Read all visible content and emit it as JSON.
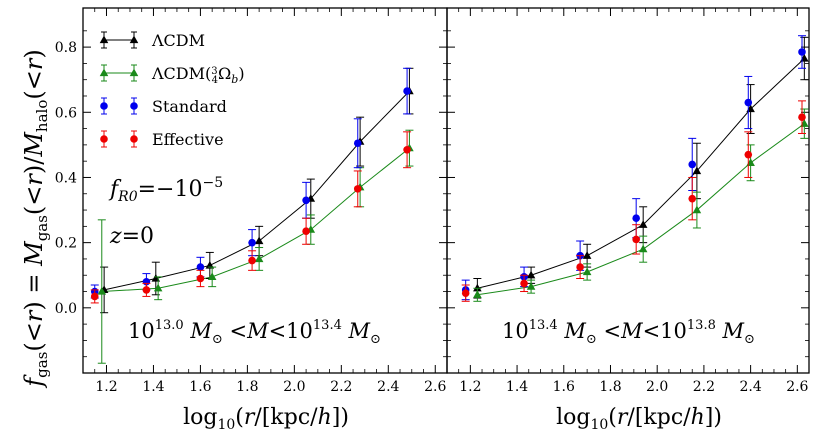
{
  "chart_data": [
    {
      "type": "scatter",
      "panel": "left",
      "xlabel": "log10(r/[kpc/h])",
      "ylabel": "f_gas(<r) = M_gas(<r)/M_halo(<r)",
      "xlim": [
        1.1,
        2.65
      ],
      "ylim": [
        -0.2,
        0.92
      ],
      "xticks": [
        "1.2",
        "1.4",
        "1.6",
        "1.8",
        "2.0",
        "2.2",
        "2.4",
        "2.6"
      ],
      "yticks": [
        "0.0",
        "0.2",
        "0.4",
        "0.6",
        "0.8"
      ],
      "annotations": [
        "f_R0 = −10^−5",
        "z = 0",
        "10^13.0 M☉ < M < 10^13.4 M☉"
      ],
      "grid": false,
      "series": [
        {
          "name": "ΛCDM",
          "marker": "triangle",
          "line": true,
          "x": [
            1.19,
            1.41,
            1.64,
            1.85,
            2.07,
            2.28,
            2.49
          ],
          "y": [
            0.055,
            0.09,
            0.13,
            0.205,
            0.335,
            0.51,
            0.665
          ],
          "err": [
            0.07,
            0.05,
            0.04,
            0.045,
            0.06,
            0.075,
            0.07
          ]
        },
        {
          "name": "ΛCDM(3/4 Ω_b)",
          "marker": "triangle",
          "line": true,
          "x": [
            1.18,
            1.42,
            1.65,
            1.85,
            2.07,
            2.28,
            2.49
          ],
          "y": [
            0.05,
            0.06,
            0.095,
            0.15,
            0.24,
            0.37,
            0.49
          ],
          "err": [
            0.22,
            0.035,
            0.03,
            0.035,
            0.045,
            0.06,
            0.055
          ]
        },
        {
          "name": "Standard",
          "marker": "circle",
          "line": false,
          "x": [
            1.15,
            1.37,
            1.6,
            1.82,
            2.05,
            2.27,
            2.48
          ],
          "y": [
            0.05,
            0.08,
            0.125,
            0.2,
            0.33,
            0.505,
            0.665
          ],
          "err": [
            0.02,
            0.025,
            0.03,
            0.04,
            0.055,
            0.075,
            0.07
          ]
        },
        {
          "name": "Effective",
          "marker": "circle",
          "line": false,
          "x": [
            1.15,
            1.37,
            1.6,
            1.82,
            2.05,
            2.27,
            2.48
          ],
          "y": [
            0.035,
            0.055,
            0.09,
            0.145,
            0.235,
            0.365,
            0.485
          ],
          "err": [
            0.02,
            0.02,
            0.025,
            0.03,
            0.04,
            0.055,
            0.055
          ]
        }
      ]
    },
    {
      "type": "scatter",
      "panel": "right",
      "xlabel": "log10(r/[kpc/h])",
      "ylabel": "",
      "xlim": [
        1.1,
        2.65
      ],
      "ylim": [
        -0.2,
        0.92
      ],
      "xticks": [
        "1.2",
        "1.4",
        "1.6",
        "1.8",
        "2.0",
        "2.2",
        "2.4",
        "2.6"
      ],
      "yticks": [],
      "annotations": [
        "10^13.4 M☉ < M < 10^13.8 M☉"
      ],
      "grid": false,
      "series": [
        {
          "name": "ΛCDM",
          "marker": "triangle",
          "line": true,
          "x": [
            1.23,
            1.46,
            1.7,
            1.94,
            2.17,
            2.4,
            2.63
          ],
          "y": [
            0.06,
            0.1,
            0.16,
            0.255,
            0.42,
            0.61,
            0.765
          ],
          "err": [
            0.03,
            0.025,
            0.035,
            0.055,
            0.085,
            0.075,
            0.065
          ]
        },
        {
          "name": "ΛCDM(3/4 Ω_b)",
          "marker": "triangle",
          "line": true,
          "x": [
            1.23,
            1.46,
            1.7,
            1.94,
            2.17,
            2.4,
            2.63
          ],
          "y": [
            0.04,
            0.065,
            0.11,
            0.18,
            0.3,
            0.445,
            0.565
          ],
          "err": [
            0.02,
            0.02,
            0.025,
            0.04,
            0.055,
            0.055,
            0.045
          ]
        },
        {
          "name": "Standard",
          "marker": "circle",
          "line": false,
          "x": [
            1.18,
            1.43,
            1.67,
            1.91,
            2.15,
            2.39,
            2.62
          ],
          "y": [
            0.055,
            0.095,
            0.16,
            0.275,
            0.44,
            0.63,
            0.785
          ],
          "err": [
            0.03,
            0.03,
            0.045,
            0.06,
            0.08,
            0.08,
            0.05
          ]
        },
        {
          "name": "Effective",
          "marker": "circle",
          "line": false,
          "x": [
            1.18,
            1.43,
            1.67,
            1.91,
            2.15,
            2.39,
            2.62
          ],
          "y": [
            0.045,
            0.075,
            0.125,
            0.21,
            0.335,
            0.47,
            0.585
          ],
          "err": [
            0.025,
            0.025,
            0.035,
            0.045,
            0.065,
            0.07,
            0.05
          ]
        }
      ]
    }
  ],
  "colors": {
    "ΛCDM": "#000000",
    "ΛCDM(3/4 Ω_b)": "#1a8a1a",
    "Standard": "#0000ee",
    "Effective": "#ee0000"
  }
}
